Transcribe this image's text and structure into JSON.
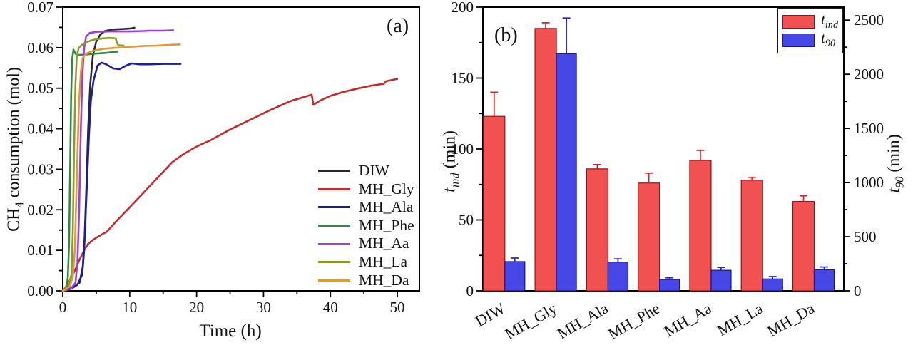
{
  "figure": {
    "bg": "#ffffff"
  },
  "panelA": {
    "letter": "(a)",
    "xlabel": "Time (h)",
    "ylabel": {
      "pre": "CH",
      "sub": "4",
      "post": " consumption (mol)"
    },
    "x_range": [
      0,
      53.3
    ],
    "y_range": [
      0,
      0.07
    ],
    "xtick_values": [
      0,
      10,
      20,
      30,
      40,
      50
    ],
    "xtick_labels": [
      "0",
      "10",
      "20",
      "30",
      "40",
      "50"
    ],
    "xminor_values": [
      5,
      15,
      25,
      35,
      45
    ],
    "ytick_values": [
      0,
      0.01,
      0.02,
      0.03,
      0.04,
      0.05,
      0.06,
      0.07
    ],
    "ytick_labels": [
      "0.00",
      "0.01",
      "0.02",
      "0.03",
      "0.04",
      "0.05",
      "0.06",
      "0.07"
    ],
    "yminor_values": [
      0.005,
      0.015,
      0.025,
      0.035,
      0.045,
      0.055,
      0.065
    ]
  },
  "panelB": {
    "letter": "(b)",
    "categories": [
      "DIW",
      "MH_Gly",
      "MH_Ala",
      "MH_Phe",
      "MH_Aa",
      "MH_La",
      "MH_Da"
    ],
    "left_axis": {
      "label": {
        "pre": "t",
        "sub": "ind",
        "post": " (min)"
      },
      "range": [
        0,
        200
      ],
      "tick_values": [
        0,
        50,
        100,
        150,
        200
      ],
      "tick_labels": [
        "0",
        "50",
        "100",
        "150",
        "200"
      ],
      "minor_values": [
        25,
        75,
        125,
        175
      ]
    },
    "right_axis": {
      "label": {
        "pre": "t",
        "sub": "90",
        "post": " (min)"
      },
      "range": [
        0,
        2620
      ],
      "tick_values": [
        0,
        500,
        1000,
        1500,
        2000,
        2500
      ],
      "tick_labels": [
        "0",
        "500",
        "1000",
        "1500",
        "2000",
        "2500"
      ],
      "minor_values": [
        250,
        750,
        1250,
        1750,
        2250
      ]
    },
    "legend": [
      {
        "pre": "t",
        "sub": "ind",
        "color": "#f15151",
        "edge": "#8f1414"
      },
      {
        "pre": "t",
        "sub": "90",
        "color": "#4747e6",
        "edge": "#14148f"
      }
    ]
  },
  "chart_data": [
    {
      "type": "line",
      "panel": "a",
      "title": "",
      "xlabel": "Time (h)",
      "ylabel": "CH4 consumption (mol)",
      "xlim": [
        0,
        53.3
      ],
      "ylim": [
        0,
        0.07
      ],
      "grid": false,
      "legend_position": "inside-right-bottom",
      "series": [
        {
          "name": "DIW",
          "color": "#2b2b2b",
          "points": [
            [
              0,
              0
            ],
            [
              1.2,
              0.0005
            ],
            [
              2.2,
              0.0015
            ],
            [
              2.9,
              0.004
            ],
            [
              3.2,
              0.01
            ],
            [
              3.5,
              0.024
            ],
            [
              3.8,
              0.04
            ],
            [
              4.1,
              0.051
            ],
            [
              4.5,
              0.058
            ],
            [
              5.0,
              0.0615
            ],
            [
              5.6,
              0.0632
            ],
            [
              6.3,
              0.0641
            ],
            [
              7.5,
              0.0645
            ],
            [
              9,
              0.0646
            ],
            [
              10,
              0.0647
            ],
            [
              10.7,
              0.0649
            ]
          ]
        },
        {
          "name": "MH_Gly",
          "color": "#c42b2b",
          "points": [
            [
              0,
              0
            ],
            [
              0.5,
              0.0005
            ],
            [
              1.0,
              0.0025
            ],
            [
              1.8,
              0.005
            ],
            [
              2.5,
              0.0077
            ],
            [
              3.2,
              0.01
            ],
            [
              3.8,
              0.0116
            ],
            [
              4.6,
              0.0127
            ],
            [
              5.6,
              0.0137
            ],
            [
              6.6,
              0.0146
            ],
            [
              8,
              0.0172
            ],
            [
              10,
              0.0206
            ],
            [
              12,
              0.0241
            ],
            [
              14,
              0.0276
            ],
            [
              16.4,
              0.0318
            ],
            [
              18,
              0.0337
            ],
            [
              20,
              0.0356
            ],
            [
              22,
              0.0371
            ],
            [
              25,
              0.0398
            ],
            [
              28,
              0.0422
            ],
            [
              31,
              0.0446
            ],
            [
              34,
              0.0468
            ],
            [
              36,
              0.0478
            ],
            [
              37.2,
              0.0484
            ],
            [
              37.45,
              0.0459
            ],
            [
              38.5,
              0.047
            ],
            [
              40,
              0.0481
            ],
            [
              42,
              0.0491
            ],
            [
              44,
              0.0499
            ],
            [
              46,
              0.0506
            ],
            [
              48,
              0.0511
            ],
            [
              48.3,
              0.0517
            ],
            [
              50,
              0.0523
            ]
          ]
        },
        {
          "name": "MH_Ala",
          "color": "#1c1c9e",
          "points": [
            [
              0,
              0
            ],
            [
              1.5,
              0.0008
            ],
            [
              2.5,
              0.002
            ],
            [
              3.0,
              0.006
            ],
            [
              3.3,
              0.014
            ],
            [
              3.6,
              0.026
            ],
            [
              3.9,
              0.038
            ],
            [
              4.2,
              0.047
            ],
            [
              4.6,
              0.052
            ],
            [
              5.2,
              0.0556
            ],
            [
              5.8,
              0.0563
            ],
            [
              6.5,
              0.0559
            ],
            [
              7.5,
              0.0549
            ],
            [
              8.5,
              0.0547
            ],
            [
              9.5,
              0.0556
            ],
            [
              10.3,
              0.0561
            ],
            [
              11.5,
              0.0559
            ],
            [
              13,
              0.0559
            ],
            [
              15,
              0.056
            ],
            [
              17.6,
              0.056
            ]
          ]
        },
        {
          "name": "MH_Phe",
          "color": "#2e8b44",
          "points": [
            [
              0,
              0
            ],
            [
              0.5,
              0.001
            ],
            [
              0.75,
              0.003
            ],
            [
              0.95,
              0.012
            ],
            [
              1.1,
              0.03
            ],
            [
              1.25,
              0.048
            ],
            [
              1.4,
              0.057
            ],
            [
              1.6,
              0.0595
            ],
            [
              1.9,
              0.0585
            ],
            [
              2.5,
              0.0582
            ],
            [
              3.5,
              0.0583
            ],
            [
              4.5,
              0.0585
            ],
            [
              5.5,
              0.0586
            ],
            [
              6.5,
              0.0587
            ],
            [
              7.5,
              0.0589
            ],
            [
              8.2,
              0.059
            ]
          ]
        },
        {
          "name": "MH_Aa",
          "color": "#9b40db",
          "points": [
            [
              0,
              0
            ],
            [
              1.2,
              0.0005
            ],
            [
              1.9,
              0.002
            ],
            [
              2.2,
              0.007
            ],
            [
              2.45,
              0.02
            ],
            [
              2.7,
              0.04
            ],
            [
              2.95,
              0.054
            ],
            [
              3.2,
              0.06
            ],
            [
              3.5,
              0.0628
            ],
            [
              4.0,
              0.0636
            ],
            [
              5,
              0.0639
            ],
            [
              7,
              0.064
            ],
            [
              10,
              0.064
            ],
            [
              12,
              0.0641
            ],
            [
              13,
              0.0642
            ],
            [
              15,
              0.0642
            ],
            [
              16.5,
              0.0643
            ]
          ]
        },
        {
          "name": "MH_La",
          "color": "#8f9a2e",
          "points": [
            [
              0,
              0
            ],
            [
              0.8,
              0.001
            ],
            [
              1.3,
              0.004
            ],
            [
              1.5,
              0.015
            ],
            [
              1.7,
              0.035
            ],
            [
              1.9,
              0.051
            ],
            [
              2.1,
              0.058
            ],
            [
              2.4,
              0.06
            ],
            [
              2.8,
              0.0606
            ],
            [
              3.3,
              0.0611
            ],
            [
              3.8,
              0.0615
            ],
            [
              4.3,
              0.0618
            ],
            [
              5,
              0.0621
            ],
            [
              6,
              0.0623
            ],
            [
              7,
              0.0624
            ],
            [
              7.9,
              0.0623
            ],
            [
              8.1,
              0.0612
            ],
            [
              8.3,
              0.0606
            ],
            [
              9.1,
              0.0605
            ]
          ]
        },
        {
          "name": "MH_Da",
          "color": "#e3992f",
          "points": [
            [
              0,
              0
            ],
            [
              1.0,
              0.001
            ],
            [
              1.5,
              0.0035
            ],
            [
              1.8,
              0.01
            ],
            [
              2.1,
              0.028
            ],
            [
              2.4,
              0.045
            ],
            [
              2.7,
              0.054
            ],
            [
              3.0,
              0.0575
            ],
            [
              3.5,
              0.0585
            ],
            [
              4.5,
              0.0592
            ],
            [
              6,
              0.0597
            ],
            [
              8,
              0.06
            ],
            [
              10,
              0.0602
            ],
            [
              12,
              0.0604
            ],
            [
              14,
              0.0605
            ],
            [
              16,
              0.0607
            ],
            [
              17.5,
              0.0608
            ]
          ]
        }
      ]
    },
    {
      "type": "bar",
      "panel": "b",
      "categories": [
        "DIW",
        "MH_Gly",
        "MH_Ala",
        "MH_Phe",
        "MH_Aa",
        "MH_La",
        "MH_Da"
      ],
      "left_ylabel": "t_ind (min)",
      "right_ylabel": "t_90 (min)",
      "left_ylim": [
        0,
        200
      ],
      "right_ylim": [
        0,
        2620
      ],
      "grid": false,
      "legend_position": "top-right",
      "series": [
        {
          "name": "t_ind",
          "axis": "left",
          "color": "#f15151",
          "edge": "#8f1414",
          "err_color": "#d42020",
          "values": [
            123,
            185,
            86,
            76,
            92,
            78,
            63
          ],
          "errors": [
            17,
            4,
            3,
            7,
            7,
            2,
            4
          ]
        },
        {
          "name": "t_90",
          "axis": "right",
          "color": "#4747e6",
          "edge": "#14148f",
          "err_color": "#2020cc",
          "values": [
            270,
            2190,
            265,
            105,
            190,
            110,
            195
          ],
          "errors": [
            33,
            330,
            30,
            15,
            26,
            22,
            25
          ]
        }
      ]
    }
  ]
}
